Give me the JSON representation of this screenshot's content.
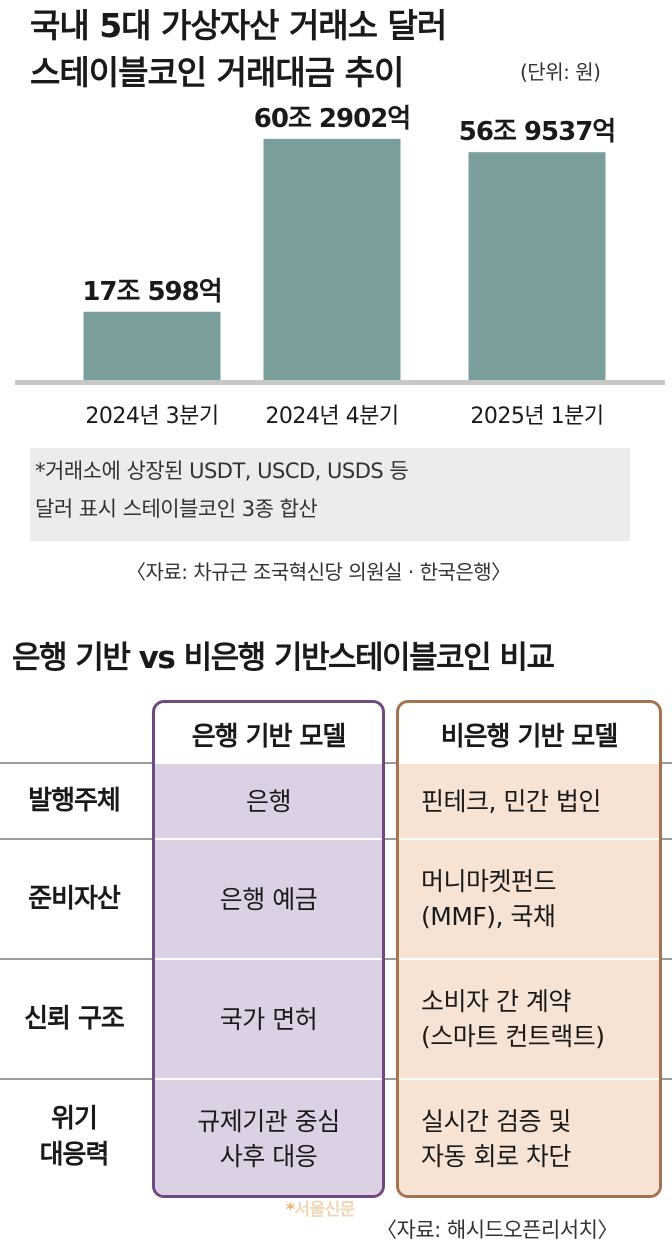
{
  "chart_data": {
    "type": "bar",
    "title_lines": [
      "국내 5대 가상자산 거래소 달러",
      "스테이블코인 거래대금 추이"
    ],
    "unit_label": "(단위: 원)",
    "categories": [
      "2024년 3분기",
      "2024년 4분기",
      "2025년 1분기"
    ],
    "values": [
      170598,
      602902,
      569537
    ],
    "value_labels": [
      "17조 598억",
      "60조 2902억",
      "56조 9537억"
    ],
    "ylim": [
      0,
      700000
    ],
    "colors": {
      "bar": "#7a9e9c",
      "baseline": "#c7c7c7"
    },
    "note_lines": [
      "*거래소에 상장된 USDT, USCD, USDS 등",
      "달러 표시 스테이블코인 3종 합산"
    ],
    "source": "〈자료: 차규근 조국혁신당 의원실 · 한국은행〉"
  },
  "comparison": {
    "title": "은행 기반 vs 비은행 기반스테이블코인 비교",
    "columns": [
      "은행 기반 모델",
      "비은행 기반 모델"
    ],
    "rows": [
      {
        "label": [
          "발행주체"
        ],
        "bank": [
          "은행"
        ],
        "nonbank": [
          "핀테크, 민간 법인"
        ]
      },
      {
        "label": [
          "준비자산"
        ],
        "bank": [
          "은행 예금"
        ],
        "nonbank": [
          "머니마켓펀드",
          "(MMF), 국채"
        ]
      },
      {
        "label": [
          "신뢰 구조"
        ],
        "bank": [
          "국가 면허"
        ],
        "nonbank": [
          "소비자 간 계약",
          "(스마트 컨트랙트)"
        ]
      },
      {
        "label": [
          "위기",
          "대응력"
        ],
        "bank": [
          "규제기관 중심",
          "사후 대응"
        ],
        "nonbank": [
          "실시간 검증 및",
          "자동 회로 차단"
        ]
      }
    ],
    "colors": {
      "bank_border": "#6f4a80",
      "bank_fill": "#dcd0e4",
      "nonbank_border": "#a67250",
      "nonbank_fill": "#f6e3d4"
    },
    "source": "〈자료: 해시드오픈리서치〉"
  },
  "watermark": "서울신문"
}
